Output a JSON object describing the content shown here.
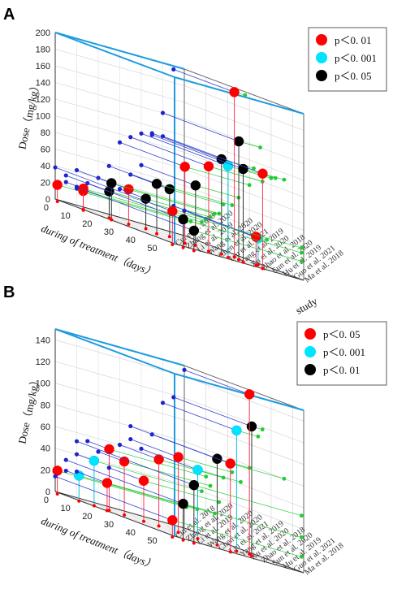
{
  "chart_data": [
    {
      "panel": "A",
      "type": "scatter",
      "xlabel": "during of treatment（days）",
      "ylabel": "Dose（mg/kg）",
      "zlabel": "study",
      "ylim": [
        0,
        200
      ],
      "yticks": [
        0,
        20,
        40,
        60,
        80,
        100,
        120,
        140,
        160,
        180,
        200
      ],
      "xticks": [
        0,
        10,
        20,
        30,
        40,
        50
      ],
      "xlim": [
        0,
        55
      ],
      "studies": [
        "Cui et al. 2018",
        "Zhang et al. 2020",
        "Li et al. 2019",
        "Wang et al. 2020",
        "Chen et al. 2020",
        "Liu et al. 2021",
        "Yang et al. 2019",
        "Xu et al. 2020",
        "Zhao et al. 2018",
        "Sun et al. 2020",
        "Hu et al. 2019",
        "Guo et al. 2021",
        "Ma et al. 2018"
      ],
      "legend": [
        {
          "label": "p＜0. 01",
          "color": "#ff0000"
        },
        {
          "label": "p＜0. 001",
          "color": "#00e5ff"
        },
        {
          "label": "p＜0. 05",
          "color": "#000000"
        }
      ],
      "points": [
        {
          "x": 1,
          "study": 0,
          "y": 18,
          "group": 0
        },
        {
          "x": 3,
          "study": 2,
          "y": 20,
          "group": 0
        },
        {
          "x": 8,
          "study": 1,
          "y": 24,
          "group": 0
        },
        {
          "x": 10,
          "study": 3,
          "y": 30,
          "group": 2
        },
        {
          "x": 14,
          "study": 4,
          "y": 40,
          "group": 0
        },
        {
          "x": 16,
          "study": 2,
          "y": 42,
          "group": 2
        },
        {
          "x": 12,
          "study": 6,
          "y": 34,
          "group": 2
        },
        {
          "x": 18,
          "study": 7,
          "y": 55,
          "group": 2
        },
        {
          "x": 22,
          "study": 5,
          "y": 58,
          "group": 2
        },
        {
          "x": 25,
          "study": 8,
          "y": 70,
          "group": 2
        },
        {
          "x": 30,
          "study": 6,
          "y": 90,
          "group": 0
        },
        {
          "x": 32,
          "study": 9,
          "y": 112,
          "group": 2
        },
        {
          "x": 35,
          "study": 10,
          "y": 140,
          "group": 2
        },
        {
          "x": 28,
          "study": 11,
          "y": 196,
          "group": 0
        },
        {
          "x": 36,
          "study": 7,
          "y": 100,
          "group": 0
        },
        {
          "x": 40,
          "study": 8,
          "y": 108,
          "group": 1
        },
        {
          "x": 42,
          "study": 9,
          "y": 110,
          "group": 2
        },
        {
          "x": 46,
          "study": 10,
          "y": 112,
          "group": 0
        },
        {
          "x": 34,
          "study": 12,
          "y": 30,
          "group": 1
        },
        {
          "x": 38,
          "study": 11,
          "y": 32,
          "group": 0
        },
        {
          "x": 54,
          "study": 0,
          "y": 38,
          "group": 0
        },
        {
          "x": 54,
          "study": 1,
          "y": 32,
          "group": 2
        },
        {
          "x": 54,
          "study": 2,
          "y": 22,
          "group": 2
        }
      ]
    },
    {
      "panel": "B",
      "type": "scatter",
      "xlabel": "during of treatment（days）",
      "ylabel": "Dose（mg/kg）",
      "zlabel": "study",
      "ylim": [
        0,
        150
      ],
      "yticks": [
        0,
        20,
        40,
        60,
        80,
        100,
        120,
        140
      ],
      "xticks": [
        0,
        10,
        20,
        30,
        40,
        50
      ],
      "xlim": [
        0,
        55
      ],
      "studies": [
        "Cui et al. 2018",
        "Zhang et al. 2020",
        "Li et al. 2019",
        "Wang et al. 2020",
        "Chen et al. 2020",
        "Liu et al. 2021",
        "Yang et al. 2019",
        "Xu et al. 2020",
        "Zhao et al. 2018",
        "Sun et al. 2020",
        "Hu et al. 2019",
        "Guo et al. 2021",
        "Ma et al. 2018"
      ],
      "legend": [
        {
          "label": "p＜0. 05",
          "color": "#ff0000"
        },
        {
          "label": "p＜0. 001",
          "color": "#00e5ff"
        },
        {
          "label": "p＜0. 01",
          "color": "#000000"
        }
      ],
      "points": [
        {
          "x": 1,
          "study": 0,
          "y": 20,
          "group": 0
        },
        {
          "x": 6,
          "study": 1,
          "y": 22,
          "group": 1
        },
        {
          "x": 8,
          "study": 2,
          "y": 40,
          "group": 1
        },
        {
          "x": 10,
          "study": 3,
          "y": 55,
          "group": 0
        },
        {
          "x": 12,
          "study": 4,
          "y": 48,
          "group": 0
        },
        {
          "x": 14,
          "study": 2,
          "y": 24,
          "group": 0
        },
        {
          "x": 16,
          "study": 5,
          "y": 36,
          "group": 0
        },
        {
          "x": 18,
          "study": 6,
          "y": 60,
          "group": 0
        },
        {
          "x": 22,
          "study": 7,
          "y": 68,
          "group": 0
        },
        {
          "x": 26,
          "study": 8,
          "y": 62,
          "group": 1
        },
        {
          "x": 30,
          "study": 9,
          "y": 78,
          "group": 2
        },
        {
          "x": 34,
          "study": 10,
          "y": 110,
          "group": 1
        },
        {
          "x": 36,
          "study": 11,
          "y": 118,
          "group": 2
        },
        {
          "x": 30,
          "study": 12,
          "y": 146,
          "group": 0
        },
        {
          "x": 46,
          "study": 7,
          "y": 80,
          "group": 0
        },
        {
          "x": 54,
          "study": 0,
          "y": 14,
          "group": 0
        },
        {
          "x": 54,
          "study": 1,
          "y": 32,
          "group": 2
        },
        {
          "x": 54,
          "study": 2,
          "y": 52,
          "group": 2
        }
      ]
    }
  ]
}
